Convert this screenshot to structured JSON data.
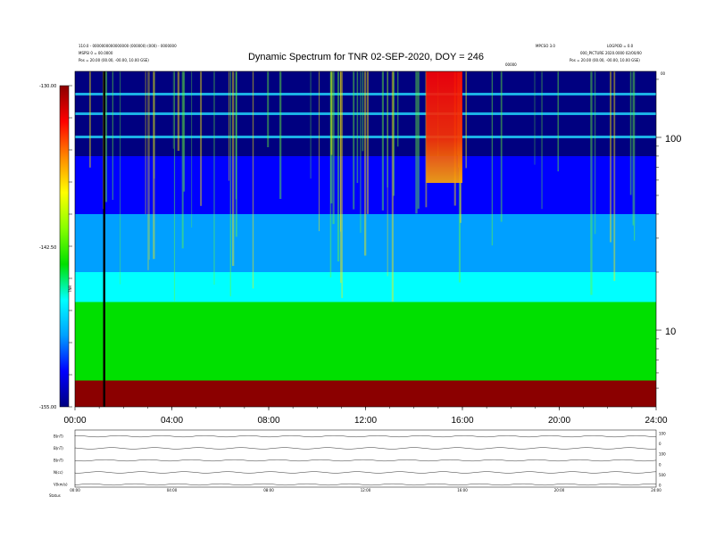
{
  "header": {
    "title": "Dynamic Spectrum for TNR 02-SEP-2020, DOY = 246",
    "left_line1": "110.0 - 0000000000000000 (000000) (000) - 0000000",
    "left_line2": "MSPSI 0 = 00.0000",
    "left_line3": "Pos = 20.00 (00.00, -00.00, 10.00 GSE)",
    "right_line1": "MPCSO 3.0",
    "right_line2": "LOGPOD = 0.0",
    "right_line3": "000_PICTURE 2020.0000 02/00/00",
    "right_line4": "Pos = 20.00 (00.00, -00.00, 10.00 GSE)",
    "center_small": "00000",
    "corner_small": "00"
  },
  "colorbar": {
    "top_label": "-130.00",
    "mid_label": "-142.50",
    "bottom_label": "-155.00",
    "axis_label": "TNR",
    "colors": [
      "#8b0000",
      "#ff0000",
      "#ff8800",
      "#ffff00",
      "#88ff00",
      "#00e000",
      "#00ffff",
      "#00a0ff",
      "#0000ff",
      "#000080"
    ]
  },
  "chart_data": {
    "type": "heatmap",
    "title": "Dynamic Spectrum for TNR 02-SEP-2020, DOY = 246",
    "x_range_hours": [
      0,
      24
    ],
    "x_ticks": [
      "00:00",
      "04:00",
      "08:00",
      "12:00",
      "16:00",
      "20:00",
      "24:00"
    ],
    "y_scale": "log",
    "y_range": [
      4,
      220
    ],
    "y_ticks": [
      "100",
      "10"
    ],
    "z_range": [
      -155.0,
      -130.0
    ],
    "colormap": "rainbow",
    "data_gap_hours": 1.2,
    "bands": [
      {
        "y_min": 4,
        "y_max": 5.5,
        "level": -130
      },
      {
        "y_min": 5.5,
        "y_max": 14,
        "level": -144
      },
      {
        "y_min": 14,
        "y_max": 20,
        "level": -147
      },
      {
        "y_min": 20,
        "y_max": 40,
        "level": -150
      },
      {
        "y_min": 40,
        "y_max": 80,
        "level": -152
      },
      {
        "y_min": 80,
        "y_max": 220,
        "level": -155
      }
    ],
    "burst_hours": [
      14.5,
      16.0
    ],
    "strip_labels": [
      "B(nT)",
      "B(nT)",
      "B(nT)",
      "N(cc)",
      "V(km/s)"
    ],
    "strip_right_ticks": [
      "100",
      "0",
      "100",
      "0",
      "500",
      "0"
    ],
    "strip_x_ticks": [
      "00:00",
      "04:00",
      "08:00",
      "12:00",
      "16:00",
      "20:00",
      "24:00"
    ],
    "footer_label": "Status"
  }
}
